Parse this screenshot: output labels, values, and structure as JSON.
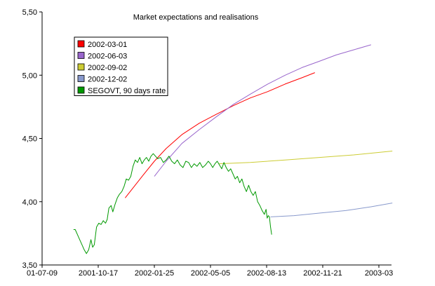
{
  "chart_data": {
    "type": "line",
    "title": "Market expectations and realisations",
    "xlabel": "",
    "ylabel": "",
    "x_start_label": "2001-07-09",
    "x_tick_labels": [
      "01-07-09",
      "2001-10-17",
      "2002-01-25",
      "2002-05-05",
      "2002-08-13",
      "2002-11-21",
      "2003-03"
    ],
    "y_tick_labels": [
      "3,50",
      "4,00",
      "4,50",
      "5,00",
      "5,50"
    ],
    "ylim": [
      3.5,
      5.5
    ],
    "legend_position": "top-left",
    "grid": false,
    "series": [
      {
        "name": "2002-03-01",
        "color": "#ff0000",
        "points": [
          [
            "2001-12-04",
            4.03
          ],
          [
            "2001-12-20",
            4.12
          ],
          [
            "2002-01-05",
            4.21
          ],
          [
            "2002-01-25",
            4.32
          ],
          [
            "2002-02-15",
            4.42
          ],
          [
            "2002-03-15",
            4.53
          ],
          [
            "2002-04-15",
            4.62
          ],
          [
            "2002-05-15",
            4.69
          ],
          [
            "2002-06-15",
            4.76
          ],
          [
            "2002-07-15",
            4.82
          ],
          [
            "2002-08-15",
            4.87
          ],
          [
            "2002-09-15",
            4.93
          ],
          [
            "2002-10-15",
            4.98
          ],
          [
            "2002-11-07",
            5.02
          ]
        ]
      },
      {
        "name": "2002-06-03",
        "color": "#9966cc",
        "points": [
          [
            "2002-01-25",
            4.2
          ],
          [
            "2002-02-15",
            4.32
          ],
          [
            "2002-03-15",
            4.46
          ],
          [
            "2002-04-15",
            4.57
          ],
          [
            "2002-05-15",
            4.67
          ],
          [
            "2002-06-15",
            4.77
          ],
          [
            "2002-07-15",
            4.85
          ],
          [
            "2002-08-15",
            4.93
          ],
          [
            "2002-09-15",
            5.0
          ],
          [
            "2002-10-15",
            5.06
          ],
          [
            "2002-11-15",
            5.11
          ],
          [
            "2002-12-15",
            5.16
          ],
          [
            "2003-01-15",
            5.2
          ],
          [
            "2003-02-15",
            5.24
          ]
        ]
      },
      {
        "name": "2002-09-02",
        "color": "#cccc33",
        "points": [
          [
            "2002-05-20",
            4.3
          ],
          [
            "2002-07-15",
            4.31
          ],
          [
            "2002-09-15",
            4.33
          ],
          [
            "2002-11-15",
            4.35
          ],
          [
            "2003-01-15",
            4.37
          ],
          [
            "2003-03-25",
            4.4
          ]
        ]
      },
      {
        "name": "2002-12-02",
        "color": "#8899cc",
        "points": [
          [
            "2002-08-20",
            3.88
          ],
          [
            "2002-10-01",
            3.89
          ],
          [
            "2002-11-15",
            3.91
          ],
          [
            "2003-01-01",
            3.93
          ],
          [
            "2003-02-15",
            3.96
          ],
          [
            "2003-03-25",
            3.99
          ]
        ]
      },
      {
        "name": "SEGOVT, 90 days rate",
        "color": "#009900",
        "points": [
          [
            "2001-09-03",
            3.78
          ],
          [
            "2001-09-06",
            3.78
          ],
          [
            "2001-09-10",
            3.74
          ],
          [
            "2001-09-14",
            3.7
          ],
          [
            "2001-09-18",
            3.66
          ],
          [
            "2001-09-22",
            3.62
          ],
          [
            "2001-09-26",
            3.59
          ],
          [
            "2001-09-30",
            3.62
          ],
          [
            "2001-10-04",
            3.7
          ],
          [
            "2001-10-07",
            3.64
          ],
          [
            "2001-10-10",
            3.66
          ],
          [
            "2001-10-14",
            3.8
          ],
          [
            "2001-10-18",
            3.83
          ],
          [
            "2001-10-22",
            3.82
          ],
          [
            "2001-10-26",
            3.85
          ],
          [
            "2001-10-30",
            3.83
          ],
          [
            "2001-11-02",
            3.86
          ],
          [
            "2001-11-05",
            3.95
          ],
          [
            "2001-11-09",
            3.97
          ],
          [
            "2001-11-12",
            3.92
          ],
          [
            "2001-11-16",
            3.98
          ],
          [
            "2001-11-20",
            4.03
          ],
          [
            "2001-11-24",
            4.06
          ],
          [
            "2001-11-28",
            4.08
          ],
          [
            "2001-12-02",
            4.12
          ],
          [
            "2001-12-06",
            4.18
          ],
          [
            "2001-12-10",
            4.17
          ],
          [
            "2001-12-14",
            4.2
          ],
          [
            "2001-12-18",
            4.28
          ],
          [
            "2001-12-22",
            4.33
          ],
          [
            "2001-12-26",
            4.31
          ],
          [
            "2001-12-30",
            4.35
          ],
          [
            "2002-01-03",
            4.3
          ],
          [
            "2002-01-07",
            4.33
          ],
          [
            "2002-01-11",
            4.35
          ],
          [
            "2002-01-15",
            4.32
          ],
          [
            "2002-01-19",
            4.36
          ],
          [
            "2002-01-23",
            4.38
          ],
          [
            "2002-01-27",
            4.36
          ],
          [
            "2002-01-31",
            4.34
          ],
          [
            "2002-02-05",
            4.35
          ],
          [
            "2002-02-10",
            4.31
          ],
          [
            "2002-02-15",
            4.33
          ],
          [
            "2002-02-20",
            4.36
          ],
          [
            "2002-02-25",
            4.32
          ],
          [
            "2002-03-02",
            4.3
          ],
          [
            "2002-03-07",
            4.33
          ],
          [
            "2002-03-12",
            4.29
          ],
          [
            "2002-03-17",
            4.27
          ],
          [
            "2002-03-22",
            4.32
          ],
          [
            "2002-03-27",
            4.31
          ],
          [
            "2002-04-01",
            4.27
          ],
          [
            "2002-04-06",
            4.3
          ],
          [
            "2002-04-11",
            4.28
          ],
          [
            "2002-04-16",
            4.31
          ],
          [
            "2002-04-21",
            4.27
          ],
          [
            "2002-04-26",
            4.29
          ],
          [
            "2002-05-01",
            4.32
          ],
          [
            "2002-05-05",
            4.3
          ],
          [
            "2002-05-09",
            4.27
          ],
          [
            "2002-05-13",
            4.3
          ],
          [
            "2002-05-17",
            4.32
          ],
          [
            "2002-05-21",
            4.29
          ],
          [
            "2002-05-25",
            4.26
          ],
          [
            "2002-05-29",
            4.31
          ],
          [
            "2002-06-02",
            4.27
          ],
          [
            "2002-06-06",
            4.24
          ],
          [
            "2002-06-10",
            4.26
          ],
          [
            "2002-06-14",
            4.22
          ],
          [
            "2002-06-18",
            4.18
          ],
          [
            "2002-06-22",
            4.2
          ],
          [
            "2002-06-26",
            4.15
          ],
          [
            "2002-06-30",
            4.18
          ],
          [
            "2002-07-04",
            4.12
          ],
          [
            "2002-07-08",
            4.08
          ],
          [
            "2002-07-12",
            4.13
          ],
          [
            "2002-07-16",
            4.08
          ],
          [
            "2002-07-20",
            4.05
          ],
          [
            "2002-07-24",
            4.08
          ],
          [
            "2002-07-28",
            4.0
          ],
          [
            "2002-08-01",
            3.97
          ],
          [
            "2002-08-05",
            3.93
          ],
          [
            "2002-08-09",
            3.9
          ],
          [
            "2002-08-12",
            3.94
          ],
          [
            "2002-08-14",
            3.87
          ],
          [
            "2002-08-16",
            3.89
          ],
          [
            "2002-08-18",
            3.88
          ],
          [
            "2002-08-20",
            3.8
          ],
          [
            "2002-08-22",
            3.74
          ]
        ]
      }
    ]
  }
}
